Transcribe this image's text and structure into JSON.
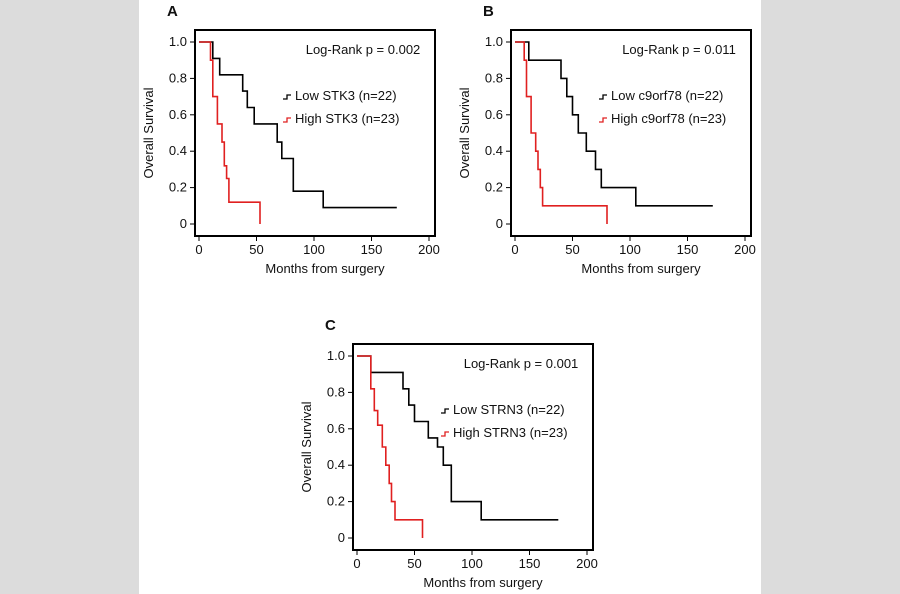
{
  "chart_data": [
    {
      "type": "line",
      "panel": "A",
      "title": "",
      "xlabel": "Months from surgery",
      "ylabel": "Overall Survival",
      "xlim": [
        0,
        200
      ],
      "ylim": [
        0,
        1.0
      ],
      "xticks": [
        0,
        50,
        100,
        150,
        200
      ],
      "xtick_labels": [
        "0",
        "50",
        "100",
        "150",
        "200"
      ],
      "yticks": [
        0,
        0.2,
        0.4,
        0.6,
        0.8,
        1.0
      ],
      "ytick_labels": [
        "0",
        "0.2",
        "0.4",
        "0.6",
        "0.8",
        "1.0"
      ],
      "annotation": "Log-Rank p = 0.002",
      "legend_position": "right",
      "series": [
        {
          "name": "Low STK3 (n=22)",
          "color": "#000000",
          "x": [
            0,
            8,
            12,
            18,
            28,
            38,
            42,
            48,
            58,
            68,
            72,
            78,
            82,
            108,
            172
          ],
          "y": [
            1.0,
            1.0,
            0.91,
            0.82,
            0.82,
            0.73,
            0.64,
            0.55,
            0.55,
            0.45,
            0.36,
            0.36,
            0.18,
            0.09,
            0.09
          ]
        },
        {
          "name": "High STK3 (n=23)",
          "color": "#e02020",
          "x": [
            0,
            7,
            10,
            12,
            16,
            20,
            22,
            24,
            26,
            29,
            53
          ],
          "y": [
            1.0,
            1.0,
            0.9,
            0.7,
            0.55,
            0.45,
            0.32,
            0.25,
            0.12,
            0.12,
            0.0
          ]
        }
      ]
    },
    {
      "type": "line",
      "panel": "B",
      "title": "",
      "xlabel": "Months from surgery",
      "ylabel": "Overall Survival",
      "xlim": [
        0,
        200
      ],
      "ylim": [
        0,
        1.0
      ],
      "xticks": [
        0,
        50,
        100,
        150,
        200
      ],
      "xtick_labels": [
        "0",
        "50",
        "100",
        "150",
        "200"
      ],
      "yticks": [
        0,
        0.2,
        0.4,
        0.6,
        0.8,
        1.0
      ],
      "ytick_labels": [
        "0",
        "0.2",
        "0.4",
        "0.6",
        "0.8",
        "1.0"
      ],
      "annotation": "Log-Rank p = 0.011",
      "legend_position": "right",
      "series": [
        {
          "name": "Low c9orf78 (n=22)",
          "color": "#000000",
          "x": [
            0,
            10,
            12,
            35,
            40,
            45,
            50,
            55,
            62,
            70,
            75,
            78,
            105,
            172
          ],
          "y": [
            1.0,
            1.0,
            0.9,
            0.9,
            0.8,
            0.7,
            0.6,
            0.5,
            0.4,
            0.3,
            0.2,
            0.2,
            0.1,
            0.1
          ]
        },
        {
          "name": "High c9orf78 (n=23)",
          "color": "#e02020",
          "x": [
            0,
            6,
            8,
            10,
            14,
            18,
            20,
            22,
            24,
            28,
            80
          ],
          "y": [
            1.0,
            1.0,
            0.9,
            0.7,
            0.5,
            0.4,
            0.3,
            0.2,
            0.1,
            0.1,
            0.0
          ]
        }
      ]
    },
    {
      "type": "line",
      "panel": "C",
      "title": "",
      "xlabel": "Months from surgery",
      "ylabel": "Overall Survival",
      "xlim": [
        0,
        200
      ],
      "ylim": [
        0,
        1.0
      ],
      "xticks": [
        0,
        50,
        100,
        150,
        200
      ],
      "xtick_labels": [
        "0",
        "50",
        "100",
        "150",
        "200"
      ],
      "yticks": [
        0,
        0.2,
        0.4,
        0.6,
        0.8,
        1.0
      ],
      "ytick_labels": [
        "0",
        "0.2",
        "0.4",
        "0.6",
        "0.8",
        "1.0"
      ],
      "annotation": "Log-Rank p = 0.001",
      "legend_position": "right",
      "series": [
        {
          "name": "Low STRN3 (n=22)",
          "color": "#000000",
          "x": [
            0,
            8,
            12,
            35,
            40,
            45,
            50,
            55,
            62,
            70,
            75,
            82,
            85,
            108,
            175
          ],
          "y": [
            1.0,
            1.0,
            0.91,
            0.91,
            0.82,
            0.73,
            0.64,
            0.64,
            0.55,
            0.5,
            0.4,
            0.2,
            0.2,
            0.1,
            0.1
          ]
        },
        {
          "name": "High STRN3 (n=23)",
          "color": "#e02020",
          "x": [
            0,
            8,
            12,
            15,
            18,
            22,
            25,
            28,
            30,
            33,
            57
          ],
          "y": [
            1.0,
            1.0,
            0.82,
            0.7,
            0.62,
            0.5,
            0.4,
            0.3,
            0.2,
            0.1,
            0.0
          ]
        }
      ]
    }
  ]
}
